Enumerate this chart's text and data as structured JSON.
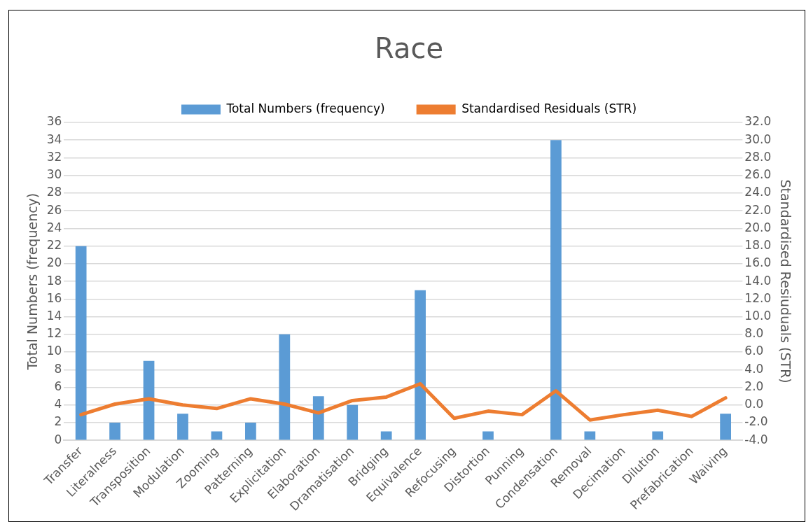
{
  "chart_data": {
    "type": "bar",
    "title": "Race",
    "ylabel": "Total Numbers (frequency)",
    "y2label": "Standardised Resiuduals (STR)",
    "categories": [
      "Transfer",
      "Literalness",
      "Transposition",
      "Modulation",
      "Zooming",
      "Patterning",
      "Explicitation",
      "Elaboration",
      "Dramatisation",
      "Bridging",
      "Equivalence",
      "Refocusing",
      "Distortion",
      "Punning",
      "Condensation",
      "Removal",
      "Decimation",
      "Dilution",
      "Prefabrication",
      "Waiving"
    ],
    "series": [
      {
        "name": "Total Numbers (frequency)",
        "color": "#5b9bd5",
        "values": [
          22,
          2,
          9,
          3,
          1,
          2,
          12,
          5,
          4,
          1,
          17,
          0,
          1,
          0,
          34,
          1,
          0,
          1,
          0,
          3
        ]
      },
      {
        "name": "Standardised Residuals (STR)",
        "type": "line",
        "axis": "y2",
        "color": "#ed7d31",
        "values": [
          -1.1,
          0.1,
          0.7,
          0.0,
          -0.4,
          0.7,
          0.1,
          -0.9,
          0.5,
          0.9,
          2.4,
          -1.5,
          -0.7,
          -1.1,
          1.6,
          -1.7,
          -1.1,
          -0.6,
          -1.3,
          0.8
        ]
      }
    ],
    "ylim": [
      0,
      36
    ],
    "yticks": [
      0,
      2,
      4,
      6,
      8,
      10,
      12,
      14,
      16,
      18,
      20,
      22,
      24,
      26,
      28,
      30,
      32,
      34,
      36
    ],
    "y2lim": [
      -4,
      32
    ],
    "y2ticks": [
      {
        "value": -4,
        "label": "-4.0"
      },
      {
        "value": -2,
        "label": "-2.0"
      },
      {
        "value": 0,
        "label": "0.0"
      },
      {
        "value": 2,
        "label": "2.0"
      },
      {
        "value": 4,
        "label": "4.0"
      },
      {
        "value": 6,
        "label": "6.0"
      },
      {
        "value": 8,
        "label": "8.0"
      },
      {
        "value": 10,
        "label": "10.0"
      },
      {
        "value": 12,
        "label": "12.0"
      },
      {
        "value": 14,
        "label": "14.0"
      },
      {
        "value": 16,
        "label": "16.0"
      },
      {
        "value": 18,
        "label": "18.0"
      },
      {
        "value": 20,
        "label": "20.0"
      },
      {
        "value": 22,
        "label": "22.0"
      },
      {
        "value": 24,
        "label": "24.0"
      },
      {
        "value": 26,
        "label": "26.0"
      },
      {
        "value": 28,
        "label": "28.0"
      },
      {
        "value": 30,
        "label": "30.0"
      },
      {
        "value": 32,
        "label": "32.0"
      }
    ],
    "grid": "y",
    "legend": "top",
    "marker": "none",
    "line_style": "solid"
  }
}
